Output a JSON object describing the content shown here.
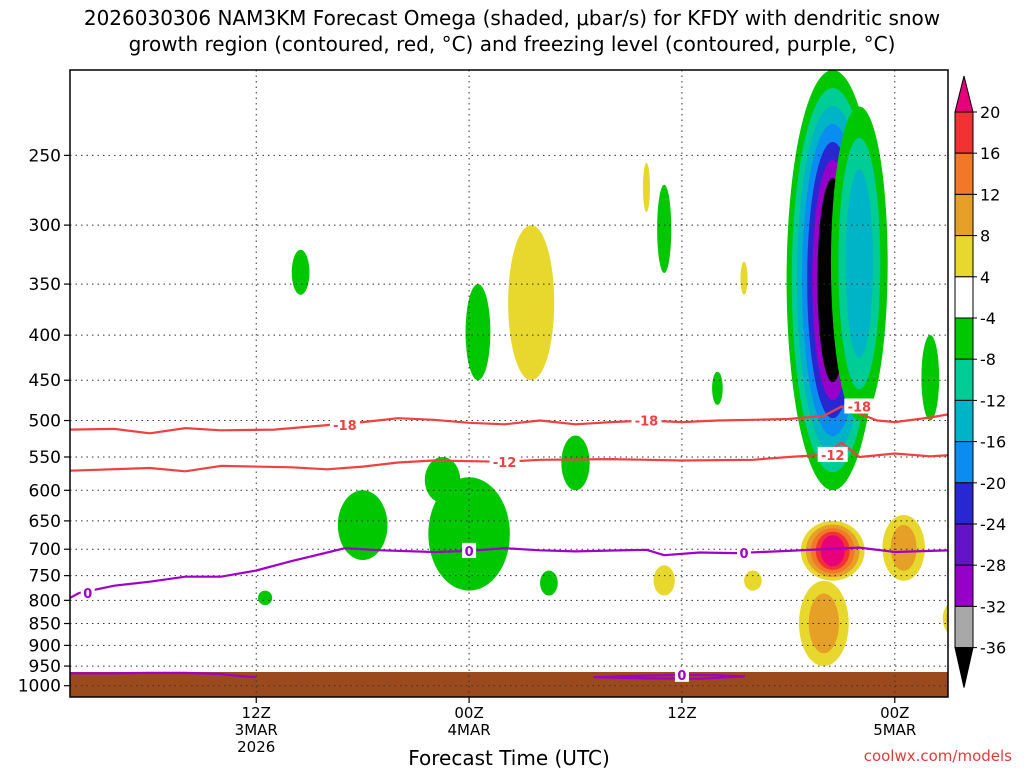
{
  "chart_data": {
    "type": "heatmap",
    "title_line1": "2026030306 NAM3KM Forecast Omega (shaded, μbar/s) for KFDY with dendritic snow",
    "title_line2": "growth region (contoured, red, °C) and freezing level (contoured, purple, °C)",
    "xlabel": "Forecast Time (UTC)",
    "ylabel": "",
    "credit": "coolwx.com/models",
    "x_range_hours": [
      -4.5,
      45
    ],
    "y_range_mb": [
      200,
      1030
    ],
    "y_ticks": [
      250,
      300,
      350,
      400,
      450,
      500,
      550,
      600,
      650,
      700,
      750,
      800,
      850,
      900,
      950,
      1000
    ],
    "x_ticks": [
      {
        "hour": 6,
        "lines": [
          "12Z",
          "3MAR",
          "2026"
        ]
      },
      {
        "hour": 18,
        "lines": [
          "00Z",
          "4MAR"
        ]
      },
      {
        "hour": 30,
        "lines": [
          "12Z"
        ]
      },
      {
        "hour": 42,
        "lines": [
          "00Z",
          "5MAR"
        ]
      },
      {
        "hour": 54,
        "lines": [
          "12Z"
        ]
      }
    ],
    "colorbar": {
      "labels": [
        "20",
        "16",
        "12",
        "8",
        "4",
        "-4",
        "-8",
        "-12",
        "-16",
        "-20",
        "-24",
        "-28",
        "-32",
        "-36"
      ],
      "bins": [
        {
          "color": "#e8007a",
          "min": 20,
          "max": 24
        },
        {
          "color": "#f03232",
          "min": 16,
          "max": 20
        },
        {
          "color": "#f07828",
          "min": 12,
          "max": 16
        },
        {
          "color": "#e6a028",
          "min": 8,
          "max": 12
        },
        {
          "color": "#e8d82e",
          "min": 4,
          "max": 8
        },
        {
          "color": "#ffffff",
          "min": -4,
          "max": 4
        },
        {
          "color": "#00c800",
          "min": -8,
          "max": -4
        },
        {
          "color": "#00cc96",
          "min": -12,
          "max": -8
        },
        {
          "color": "#00b4c8",
          "min": -16,
          "max": -12
        },
        {
          "color": "#0a8cf0",
          "min": -20,
          "max": -16
        },
        {
          "color": "#2828d2",
          "min": -24,
          "max": -20
        },
        {
          "color": "#6414c8",
          "min": -28,
          "max": -24
        },
        {
          "color": "#9600c8",
          "min": -32,
          "max": -28
        },
        {
          "color": "#a8a8a8",
          "min": -36,
          "max": -32
        },
        {
          "color": "#000000",
          "min": -40,
          "max": -36
        }
      ]
    },
    "omega_features": [
      {
        "x": 38.5,
        "p1": 200,
        "p2": 600,
        "w": 2.6,
        "levels": [
          -4,
          -8,
          -12,
          -16,
          -20,
          -28,
          -36
        ]
      },
      {
        "x": 40,
        "p1": 220,
        "p2": 500,
        "w": 1.6,
        "levels": [
          -4,
          -8,
          -12
        ]
      },
      {
        "x": 50,
        "p1": 270,
        "p2": 620,
        "w": 2.4,
        "levels": [
          -4,
          -8,
          -12,
          -16,
          -20,
          -28,
          -36
        ]
      },
      {
        "x": 46.5,
        "p1": 250,
        "p2": 550,
        "w": 1.3,
        "levels": [
          -4,
          -8
        ]
      },
      {
        "x": 54.5,
        "p1": 230,
        "p2": 560,
        "w": 2.2,
        "levels": [
          -4,
          -8,
          -12
        ]
      },
      {
        "x": 57.5,
        "p1": 250,
        "p2": 520,
        "w": 1.6,
        "levels": [
          -4,
          -8
        ]
      },
      {
        "x": 59.5,
        "p1": 270,
        "p2": 520,
        "w": 1.2,
        "levels": [
          -4,
          -8,
          -12
        ]
      },
      {
        "x": 53,
        "p1": 570,
        "p2": 690,
        "w": 1.2,
        "levels": [
          -4,
          -8,
          -12,
          -16
        ]
      },
      {
        "x": 18,
        "p1": 580,
        "p2": 780,
        "w": 2.3,
        "levels": [
          -4
        ]
      },
      {
        "x": 12,
        "p1": 600,
        "p2": 720,
        "w": 1.4,
        "levels": [
          -4
        ]
      },
      {
        "x": 16.5,
        "p1": 550,
        "p2": 620,
        "w": 1.0,
        "levels": [
          -4
        ]
      },
      {
        "x": 24,
        "p1": 520,
        "p2": 600,
        "w": 0.8,
        "levels": [
          -4
        ]
      },
      {
        "x": 18.5,
        "p1": 350,
        "p2": 450,
        "w": 0.7,
        "levels": [
          -4
        ]
      },
      {
        "x": 29,
        "p1": 270,
        "p2": 340,
        "w": 0.4,
        "levels": [
          -4
        ]
      },
      {
        "x": 8.5,
        "p1": 320,
        "p2": 360,
        "w": 0.5,
        "levels": [
          -4
        ]
      },
      {
        "x": 22.5,
        "p1": 740,
        "p2": 790,
        "w": 0.5,
        "levels": [
          -4
        ]
      },
      {
        "x": 6.5,
        "p1": 780,
        "p2": 810,
        "w": 0.4,
        "levels": [
          -4
        ]
      },
      {
        "x": 60,
        "p1": 720,
        "p2": 820,
        "w": 1.0,
        "levels": [
          -4
        ]
      },
      {
        "x": 44,
        "p1": 400,
        "p2": 500,
        "w": 0.5,
        "levels": [
          -4
        ]
      },
      {
        "x": 32,
        "p1": 440,
        "p2": 480,
        "w": 0.3,
        "levels": [
          -4
        ]
      },
      {
        "x": 38.5,
        "p1": 650,
        "p2": 760,
        "w": 1.8,
        "levels": [
          4,
          8,
          12,
          16,
          20
        ]
      },
      {
        "x": 38,
        "p1": 760,
        "p2": 950,
        "w": 1.4,
        "levels": [
          4,
          8
        ]
      },
      {
        "x": 49,
        "p1": 680,
        "p2": 830,
        "w": 1.8,
        "levels": [
          4,
          8,
          12,
          16,
          20
        ]
      },
      {
        "x": 47,
        "p1": 700,
        "p2": 820,
        "w": 1.2,
        "levels": [
          4,
          8,
          12,
          16
        ]
      },
      {
        "x": 53.5,
        "p1": 760,
        "p2": 880,
        "w": 1.0,
        "levels": [
          4,
          8,
          12,
          16,
          20
        ]
      },
      {
        "x": 57,
        "p1": 580,
        "p2": 720,
        "w": 2.4,
        "levels": [
          4,
          8,
          12,
          16,
          20
        ]
      },
      {
        "x": 55.5,
        "p1": 740,
        "p2": 820,
        "w": 1.0,
        "levels": [
          4,
          8
        ]
      },
      {
        "x": 42.5,
        "p1": 640,
        "p2": 760,
        "w": 1.2,
        "levels": [
          4,
          8
        ]
      },
      {
        "x": 45.5,
        "p1": 800,
        "p2": 880,
        "w": 0.8,
        "levels": [
          4,
          8,
          12
        ]
      },
      {
        "x": 21.5,
        "p1": 300,
        "p2": 450,
        "w": 1.3,
        "levels": [
          4
        ]
      },
      {
        "x": 50,
        "p1": 200,
        "p2": 300,
        "w": 0.7,
        "levels": [
          4
        ]
      },
      {
        "x": 29,
        "p1": 730,
        "p2": 790,
        "w": 0.6,
        "levels": [
          4
        ]
      },
      {
        "x": 34,
        "p1": 740,
        "p2": 780,
        "w": 0.5,
        "levels": [
          4
        ]
      },
      {
        "x": 28,
        "p1": 255,
        "p2": 290,
        "w": 0.2,
        "levels": [
          4
        ]
      },
      {
        "x": 33.5,
        "p1": 330,
        "p2": 360,
        "w": 0.2,
        "levels": [
          4
        ]
      }
    ],
    "contours": [
      {
        "name": "-18C",
        "label": "-18",
        "color": "#f04040",
        "label_hours": [
          11,
          28,
          40
        ],
        "points": [
          [
            -4.5,
            512
          ],
          [
            -2,
            511
          ],
          [
            0,
            517
          ],
          [
            2,
            510
          ],
          [
            4,
            513
          ],
          [
            7,
            512
          ],
          [
            10,
            506
          ],
          [
            12,
            502
          ],
          [
            14,
            497
          ],
          [
            16,
            499
          ],
          [
            18,
            503
          ],
          [
            20,
            505
          ],
          [
            22,
            500
          ],
          [
            24,
            505
          ],
          [
            26,
            502
          ],
          [
            28,
            500
          ],
          [
            30,
            502
          ],
          [
            32,
            500
          ],
          [
            34,
            499
          ],
          [
            36,
            498
          ],
          [
            38,
            494
          ],
          [
            39,
            482
          ],
          [
            41,
            500
          ],
          [
            42,
            502
          ],
          [
            44,
            496
          ],
          [
            46,
            488
          ],
          [
            48,
            482
          ],
          [
            50,
            491
          ],
          [
            52,
            487
          ],
          [
            54,
            482
          ],
          [
            56,
            476
          ],
          [
            58,
            477
          ],
          [
            60,
            482
          ],
          [
            61,
            490
          ],
          [
            62,
            500
          ]
        ]
      },
      {
        "name": "-12C",
        "label": "-12",
        "color": "#f04040",
        "label_hours": [
          20,
          38.5
        ],
        "points": [
          [
            -4.5,
            570
          ],
          [
            0,
            566
          ],
          [
            2,
            571
          ],
          [
            4,
            563
          ],
          [
            8,
            565
          ],
          [
            10,
            568
          ],
          [
            12,
            564
          ],
          [
            14,
            558
          ],
          [
            16,
            555
          ],
          [
            20,
            557
          ],
          [
            22,
            554
          ],
          [
            26,
            553
          ],
          [
            30,
            555
          ],
          [
            34,
            554
          ],
          [
            36,
            550
          ],
          [
            38,
            547
          ],
          [
            39,
            530
          ],
          [
            40,
            550
          ],
          [
            42,
            545
          ],
          [
            44,
            549
          ],
          [
            46,
            546
          ],
          [
            48,
            544
          ],
          [
            50,
            550
          ],
          [
            52,
            548
          ],
          [
            54,
            544
          ],
          [
            56,
            537
          ],
          [
            58,
            533
          ],
          [
            60,
            534
          ],
          [
            61,
            530
          ],
          [
            62,
            540
          ]
        ]
      },
      {
        "name": "0C",
        "label": "0",
        "color": "#a000c8",
        "label_hours": [
          -3.5,
          18,
          33.5,
          50
        ],
        "points": [
          [
            -4.5,
            795
          ],
          [
            -4,
            785
          ],
          [
            -2,
            770
          ],
          [
            0,
            762
          ],
          [
            2,
            752
          ],
          [
            4,
            752
          ],
          [
            6,
            740
          ],
          [
            8,
            722
          ],
          [
            10,
            706
          ],
          [
            11,
            698
          ],
          [
            13,
            702
          ],
          [
            16,
            705
          ],
          [
            18,
            703
          ],
          [
            20,
            698
          ],
          [
            22,
            702
          ],
          [
            24,
            704
          ],
          [
            28,
            701
          ],
          [
            29,
            711
          ],
          [
            31,
            706
          ],
          [
            33,
            707
          ],
          [
            36,
            703
          ],
          [
            38,
            700
          ],
          [
            40,
            697
          ],
          [
            42,
            705
          ],
          [
            44,
            703
          ],
          [
            46,
            701
          ],
          [
            48,
            705
          ],
          [
            50,
            710
          ],
          [
            51,
            715
          ],
          [
            52,
            703
          ],
          [
            54,
            705
          ],
          [
            56,
            699
          ],
          [
            58,
            706
          ],
          [
            60,
            693
          ],
          [
            62,
            700
          ]
        ]
      },
      {
        "name": "0C-surface",
        "label": "",
        "color": "#a000c8",
        "label_hours": [],
        "points": [
          [
            -4.5,
            968
          ],
          [
            -2,
            968
          ],
          [
            0,
            967
          ],
          [
            2,
            967
          ],
          [
            4,
            970
          ],
          [
            5,
            975
          ],
          [
            6,
            978
          ]
        ]
      },
      {
        "name": "0C-loop",
        "label": "0",
        "color": "#a000c8",
        "label_hours": [
          30
        ],
        "points": [
          [
            25,
            978
          ],
          [
            27,
            975
          ],
          [
            30,
            972
          ],
          [
            32,
            973
          ],
          [
            33.5,
            976
          ],
          [
            31,
            982
          ],
          [
            28,
            981
          ],
          [
            25,
            978
          ]
        ]
      }
    ]
  }
}
